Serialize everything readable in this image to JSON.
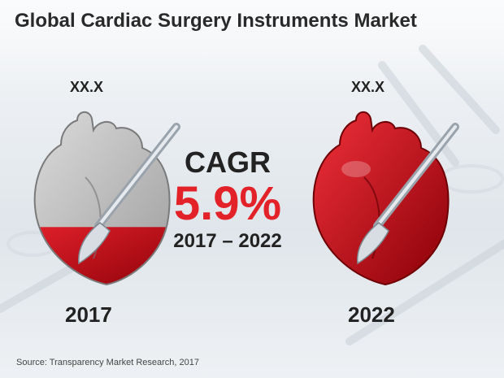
{
  "header": {
    "title": "Global Cardiac Surgery Instruments Market"
  },
  "chart_data": {
    "type": "infographic",
    "title": "Global Cardiac Surgery Instruments Market",
    "categories": [
      "2017",
      "2022"
    ],
    "value_labels": [
      "XX.X",
      "XX.X"
    ],
    "fill_fraction": [
      0.35,
      1.0
    ],
    "cagr": {
      "label": "CAGR",
      "value": "5.9%",
      "period": "2017 – 2022"
    },
    "colors": {
      "heart_fill": "#c8000f",
      "heart_empty": "#c4c4c4",
      "cagr_value": "#e32128"
    }
  },
  "footer": {
    "source": "Source: Transparency Market Research, 2017"
  }
}
